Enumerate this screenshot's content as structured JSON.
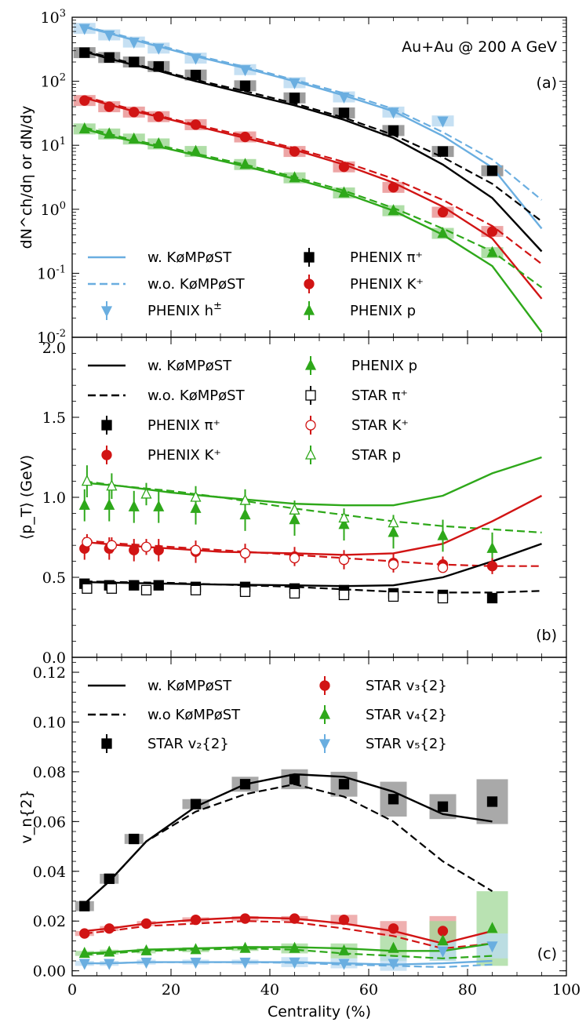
{
  "colors": {
    "black": "#000000",
    "red": "#d11414",
    "green": "#2ea81a",
    "blue": "#6aaee0"
  },
  "chart_data": [
    {
      "type": "line",
      "panel_label": "(a)",
      "annotation": "Au+Au @ 200 A GeV",
      "ylabel": "dN^ch/dη or dN/dy",
      "y_scale": "log",
      "ylim": [
        0.01,
        1000
      ],
      "xlim": [
        0,
        100
      ],
      "yticks": [
        "10^-2",
        "10^-1",
        "10^0",
        "10^1",
        "10^2",
        "10^3"
      ],
      "legend": [
        {
          "label": "w. KøMPøST",
          "kind": "solid",
          "color": "blue"
        },
        {
          "label": "PHENIX π⁺",
          "kind": "square",
          "color": "black"
        },
        {
          "label": "w.o. KøMPøST",
          "kind": "dashed",
          "color": "blue"
        },
        {
          "label": "PHENIX K⁺",
          "kind": "circle",
          "color": "red"
        },
        {
          "label": "PHENIX h^±",
          "kind": "tri-down",
          "color": "blue"
        },
        {
          "label": "PHENIX p",
          "kind": "tri-up",
          "color": "green"
        }
      ],
      "model_x": [
        2.5,
        7.5,
        12.5,
        17.5,
        25,
        35,
        45,
        55,
        65,
        75,
        85,
        95
      ],
      "model": [
        {
          "color": "blue",
          "w": [
            700,
            560,
            440,
            350,
            245,
            160,
            100,
            60,
            34,
            14,
            4.5,
            0.5
          ],
          "wo": [
            720,
            580,
            460,
            365,
            255,
            168,
            105,
            65,
            37,
            16,
            6,
            1.4
          ]
        },
        {
          "color": "black",
          "w": [
            290,
            225,
            180,
            145,
            100,
            65,
            42,
            25,
            13,
            5,
            1.5,
            0.22
          ],
          "wo": [
            300,
            235,
            187,
            150,
            105,
            70,
            45,
            27,
            14.5,
            6.5,
            2.5,
            0.65
          ]
        },
        {
          "color": "red",
          "w": [
            55,
            43,
            34,
            28,
            20,
            13,
            8.5,
            5,
            2.6,
            1.1,
            0.35,
            0.04
          ],
          "wo": [
            58,
            45,
            36,
            29,
            21,
            14,
            9,
            5.5,
            3,
            1.4,
            0.55,
            0.14
          ]
        },
        {
          "color": "green",
          "w": [
            18,
            14,
            11.5,
            9.5,
            7,
            4.7,
            3,
            1.8,
            0.95,
            0.4,
            0.13,
            0.012
          ],
          "wo": [
            19,
            15,
            12,
            10,
            7.4,
            5,
            3.2,
            1.95,
            1.05,
            0.5,
            0.22,
            0.06
          ]
        }
      ],
      "data": [
        {
          "name": "PHENIX h^±",
          "color": "blue",
          "marker": "tri-down",
          "x": [
            2.5,
            7.5,
            12.5,
            17.5,
            25,
            35,
            45,
            55,
            65,
            75
          ],
          "y": [
            670,
            530,
            410,
            330,
            230,
            152,
            95,
            57,
            33,
            24
          ]
        },
        {
          "name": "PHENIX π⁺",
          "color": "black",
          "marker": "square",
          "x": [
            2.5,
            7.5,
            12.5,
            17.5,
            25,
            35,
            45,
            55,
            65,
            75,
            85
          ],
          "y": [
            280,
            235,
            200,
            170,
            125,
            85,
            55,
            32,
            17,
            8,
            4
          ]
        },
        {
          "name": "PHENIX K⁺",
          "color": "red",
          "marker": "circle",
          "x": [
            2.5,
            7.5,
            12.5,
            17.5,
            25,
            35,
            45,
            55,
            65,
            75,
            85
          ],
          "y": [
            50,
            40,
            33,
            28,
            21,
            13.5,
            8,
            4.6,
            2.2,
            0.9,
            0.45
          ]
        },
        {
          "name": "PHENIX p",
          "color": "green",
          "marker": "tri-up",
          "x": [
            2.5,
            7.5,
            12.5,
            17.5,
            25,
            35,
            45,
            55,
            65,
            75,
            85
          ],
          "y": [
            18,
            15,
            12.5,
            10.5,
            8,
            5,
            3.1,
            1.8,
            0.95,
            0.42,
            0.21
          ]
        }
      ]
    },
    {
      "type": "line",
      "panel_label": "(b)",
      "ylabel": "⟨p_T⟩ (GeV)",
      "ylim": [
        0.0,
        2.0
      ],
      "xlim": [
        0,
        100
      ],
      "yticks": [
        "0.0",
        "0.5",
        "1.0",
        "1.5",
        "2.0"
      ],
      "legend": [
        {
          "label": "w. KøMPøST",
          "kind": "solid",
          "color": "black"
        },
        {
          "label": "PHENIX p",
          "kind": "tri-up",
          "color": "green"
        },
        {
          "label": "w.o. KøMPøST",
          "kind": "dashed",
          "color": "black"
        },
        {
          "label": "STAR π⁺",
          "kind": "open-square",
          "color": "black"
        },
        {
          "label": "PHENIX π⁺",
          "kind": "square",
          "color": "black"
        },
        {
          "label": "STAR K⁺",
          "kind": "open-circle",
          "color": "red"
        },
        {
          "label": "PHENIX K⁺",
          "kind": "circle",
          "color": "red"
        },
        {
          "label": "STAR p",
          "kind": "open-tri-up",
          "color": "green"
        }
      ],
      "model": [
        {
          "color": "green",
          "x": [
            2.5,
            10,
            20,
            30,
            45,
            55,
            65,
            75,
            85,
            95
          ],
          "w": [
            1.09,
            1.07,
            1.03,
            1.0,
            0.96,
            0.95,
            0.95,
            1.01,
            1.15,
            1.25
          ],
          "wo_x": [
            2.5,
            10,
            20,
            30,
            45,
            55,
            65,
            75,
            85,
            95
          ],
          "wo": [
            1.1,
            1.07,
            1.04,
            1.0,
            0.93,
            0.89,
            0.85,
            0.82,
            0.8,
            0.78
          ]
        },
        {
          "color": "red",
          "x": [
            2.5,
            10,
            20,
            30,
            45,
            55,
            65,
            75,
            85,
            95
          ],
          "w": [
            0.72,
            0.7,
            0.68,
            0.66,
            0.65,
            0.64,
            0.65,
            0.71,
            0.85,
            1.01
          ],
          "wo_x": [
            2.5,
            10,
            20,
            30,
            45,
            55,
            65,
            75,
            85,
            95
          ],
          "wo": [
            0.73,
            0.71,
            0.69,
            0.67,
            0.64,
            0.62,
            0.6,
            0.58,
            0.57,
            0.57
          ]
        },
        {
          "color": "black",
          "x": [
            2.5,
            10,
            20,
            30,
            45,
            55,
            65,
            75,
            85,
            95
          ],
          "w": [
            0.47,
            0.465,
            0.46,
            0.455,
            0.45,
            0.445,
            0.45,
            0.5,
            0.6,
            0.71
          ],
          "wo_x": [
            2.5,
            10,
            20,
            30,
            45,
            55,
            65,
            75,
            85,
            95
          ],
          "wo": [
            0.475,
            0.47,
            0.465,
            0.455,
            0.44,
            0.425,
            0.41,
            0.405,
            0.405,
            0.415
          ]
        }
      ],
      "data": [
        {
          "name": "PHENIX p",
          "color": "green",
          "marker": "tri-up",
          "x": [
            2.5,
            7.5,
            12.5,
            17.5,
            25,
            35,
            45,
            55,
            65,
            75,
            85
          ],
          "y": [
            0.95,
            0.95,
            0.94,
            0.94,
            0.93,
            0.89,
            0.86,
            0.83,
            0.78,
            0.76,
            0.68
          ],
          "err": [
            0.1,
            0.1,
            0.1,
            0.1,
            0.1,
            0.1,
            0.1,
            0.1,
            0.1,
            0.1,
            0.1
          ]
        },
        {
          "name": "STAR p",
          "color": "green",
          "marker": "open-tri-up",
          "x": [
            3,
            8,
            15,
            25,
            35,
            45,
            55,
            65
          ],
          "y": [
            1.1,
            1.07,
            1.02,
            1.0,
            0.98,
            0.92,
            0.87,
            0.84
          ],
          "err": [
            0.1,
            0.08,
            0.07,
            0.07,
            0.07,
            0.06,
            0.06,
            0.05
          ]
        },
        {
          "name": "PHENIX K⁺",
          "color": "red",
          "marker": "circle",
          "x": [
            2.5,
            7.5,
            12.5,
            17.5,
            25,
            35,
            45,
            55,
            65,
            75,
            85
          ],
          "y": [
            0.68,
            0.68,
            0.67,
            0.67,
            0.66,
            0.65,
            0.63,
            0.61,
            0.59,
            0.58,
            0.57
          ],
          "err": [
            0.07,
            0.07,
            0.07,
            0.07,
            0.07,
            0.06,
            0.06,
            0.06,
            0.06,
            0.05,
            0.05
          ]
        },
        {
          "name": "STAR K⁺",
          "color": "red",
          "marker": "open-circle",
          "x": [
            3,
            8,
            15,
            25,
            35,
            45,
            55,
            65,
            75
          ],
          "y": [
            0.72,
            0.7,
            0.69,
            0.67,
            0.65,
            0.62,
            0.61,
            0.58,
            0.56
          ],
          "err": [
            0.05,
            0.05,
            0.05,
            0.04,
            0.04,
            0.04,
            0.04,
            0.03,
            0.03
          ]
        },
        {
          "name": "PHENIX π⁺",
          "color": "black",
          "marker": "square",
          "x": [
            2.5,
            7.5,
            12.5,
            17.5,
            25,
            35,
            45,
            55,
            65,
            75,
            85
          ],
          "y": [
            0.46,
            0.45,
            0.45,
            0.45,
            0.44,
            0.44,
            0.43,
            0.42,
            0.4,
            0.39,
            0.37
          ],
          "err": [
            0.03,
            0.03,
            0.03,
            0.03,
            0.03,
            0.03,
            0.03,
            0.03,
            0.03,
            0.03,
            0.03
          ]
        },
        {
          "name": "STAR π⁺",
          "color": "black",
          "marker": "open-square",
          "x": [
            3,
            8,
            15,
            25,
            35,
            45,
            55,
            65,
            75
          ],
          "y": [
            0.43,
            0.43,
            0.42,
            0.42,
            0.41,
            0.4,
            0.39,
            0.38,
            0.37
          ],
          "err": [
            0.02,
            0.02,
            0.02,
            0.02,
            0.02,
            0.02,
            0.02,
            0.02,
            0.02
          ]
        }
      ]
    },
    {
      "type": "line",
      "panel_label": "(c)",
      "ylabel": "v_n{2}",
      "xlabel": "Centrality (%)",
      "ylim": [
        -0.002,
        0.126
      ],
      "xlim": [
        0,
        100
      ],
      "yticks": [
        "0.00",
        "0.02",
        "0.04",
        "0.06",
        "0.08",
        "0.10",
        "0.12"
      ],
      "xticks": [
        "0",
        "20",
        "40",
        "60",
        "80",
        "100"
      ],
      "legend": [
        {
          "label": "w. KøMPøST",
          "kind": "solid",
          "color": "black"
        },
        {
          "label": "STAR v₃{2}",
          "kind": "circle",
          "color": "red"
        },
        {
          "label": "w.o KøMPøST",
          "kind": "dashed",
          "color": "black"
        },
        {
          "label": "STAR v₄{2}",
          "kind": "tri-up",
          "color": "green"
        },
        {
          "label": "STAR v₂{2}",
          "kind": "square",
          "color": "black"
        },
        {
          "label": "STAR v₅{2}",
          "kind": "tri-down",
          "color": "blue"
        }
      ],
      "model_x": [
        2.5,
        7.5,
        15,
        25,
        35,
        45,
        55,
        65,
        75,
        85
      ],
      "model": [
        {
          "color": "black",
          "w": [
            0.027,
            0.036,
            0.052,
            0.066,
            0.075,
            0.079,
            0.078,
            0.072,
            0.063,
            0.06
          ],
          "wo": [
            0.027,
            0.036,
            0.052,
            0.064,
            0.071,
            0.075,
            0.07,
            0.06,
            0.044,
            0.032
          ]
        },
        {
          "color": "red",
          "w": [
            0.016,
            0.017,
            0.019,
            0.0205,
            0.0215,
            0.021,
            0.019,
            0.016,
            0.011,
            0.016
          ],
          "wo": [
            0.015,
            0.016,
            0.018,
            0.019,
            0.02,
            0.0195,
            0.017,
            0.014,
            0.009,
            0.011
          ]
        },
        {
          "color": "green",
          "w": [
            0.007,
            0.0075,
            0.0085,
            0.009,
            0.0095,
            0.0095,
            0.009,
            0.008,
            0.008,
            0.011
          ],
          "wo": [
            0.0065,
            0.007,
            0.008,
            0.0085,
            0.009,
            0.0085,
            0.007,
            0.006,
            0.005,
            0.006
          ]
        },
        {
          "color": "blue",
          "w": [
            0.003,
            0.003,
            0.0035,
            0.0035,
            0.0035,
            0.0035,
            0.003,
            0.0025,
            0.003,
            0.004
          ],
          "wo": [
            0.003,
            0.003,
            0.0035,
            0.0035,
            0.0035,
            0.0032,
            0.0025,
            0.002,
            0.0015,
            0.0025
          ]
        }
      ],
      "data": [
        {
          "name": "STAR v₂{2}",
          "color": "black",
          "marker": "square",
          "x": [
            2.5,
            7.5,
            12.5,
            25,
            35,
            45,
            55,
            65,
            75,
            85
          ],
          "y": [
            0.026,
            0.037,
            0.053,
            0.067,
            0.075,
            0.077,
            0.075,
            0.069,
            0.066,
            0.068
          ],
          "sys": [
            0.002,
            0.002,
            0.002,
            0.002,
            0.003,
            0.004,
            0.005,
            0.007,
            0.005,
            0.009
          ]
        },
        {
          "name": "STAR v₃{2}",
          "color": "red",
          "marker": "circle",
          "x": [
            2.5,
            7.5,
            15,
            25,
            35,
            45,
            55,
            65,
            75
          ],
          "y": [
            0.015,
            0.017,
            0.019,
            0.0205,
            0.021,
            0.021,
            0.0205,
            0.017,
            0.016
          ],
          "sys": [
            0.001,
            0.001,
            0.001,
            0.001,
            0.001,
            0.001,
            0.002,
            0.003,
            0.006
          ]
        },
        {
          "name": "STAR v₄{2}",
          "color": "green",
          "marker": "tri-up",
          "x": [
            2.5,
            7.5,
            15,
            25,
            35,
            45,
            55,
            65,
            75,
            85
          ],
          "y": [
            0.007,
            0.0075,
            0.008,
            0.0085,
            0.009,
            0.009,
            0.008,
            0.009,
            0.012,
            0.017
          ],
          "sys": [
            0.001,
            0.001,
            0.001,
            0.001,
            0.001,
            0.002,
            0.003,
            0.005,
            0.008,
            0.015
          ]
        },
        {
          "name": "STAR v₅{2}",
          "color": "blue",
          "marker": "tri-down",
          "x": [
            2.5,
            7.5,
            15,
            25,
            35,
            45,
            55,
            65,
            75,
            85
          ],
          "y": [
            0.003,
            0.003,
            0.0035,
            0.0035,
            0.0035,
            0.0035,
            0.003,
            0.003,
            0.008,
            0.01
          ],
          "sys": [
            0.001,
            0.001,
            0.001,
            0.001,
            0.001,
            0.002,
            0.002,
            0.003,
            0.004,
            0.005
          ]
        }
      ]
    }
  ]
}
